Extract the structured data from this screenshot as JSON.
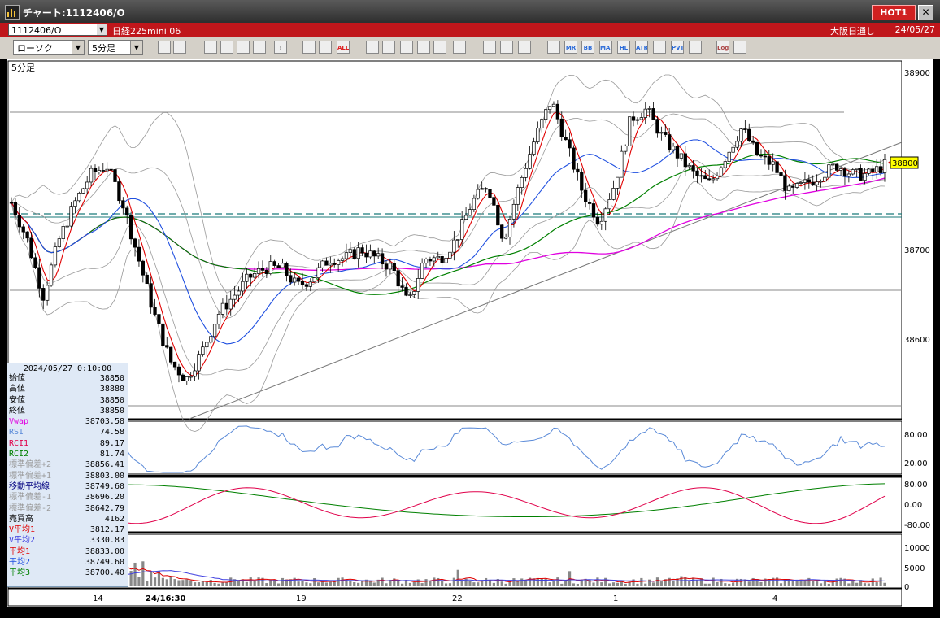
{
  "window": {
    "title": "チャート:1112406/O",
    "hot_label": "HOT1",
    "close_label": "✕"
  },
  "infobar": {
    "code": "1112406/O",
    "instrument": "日経225mini 06",
    "session": "大阪日通し",
    "date": "24/05/27"
  },
  "toolbar": {
    "chart_type": "ローソク",
    "interval": "5分足",
    "icons": [
      "zoom-icon",
      "table-icon",
      "bear-icon",
      "magnifier-icon",
      "chart-icon",
      "bull-icon",
      "warning-icon",
      "candle-icon",
      "candle-icon",
      "all-icon",
      "pen-icon",
      "line-icon",
      "cursor-icon",
      "arrow-icon",
      "text-icon",
      "trash-icon",
      "settings-icon",
      "wrench-icon",
      "palette-icon",
      "ma-icon",
      "mr-icon",
      "bb-icon",
      "mae-icon",
      "hl-icon",
      "atr-icon",
      "pattern-icon",
      "pvt-icon",
      "box-icon",
      "log-icon",
      "export-icon"
    ],
    "icon_labels": [
      "",
      "",
      "",
      "",
      "",
      "",
      "!",
      "",
      "",
      "ALL",
      "",
      "",
      "",
      "",
      "",
      "",
      "",
      "",
      "",
      "",
      "MR",
      "BB",
      "MAE",
      "HL",
      "ATR",
      "",
      "PVT",
      "",
      "Log",
      ""
    ]
  },
  "chart": {
    "interval_label": "5分足",
    "price_axis_labels": [
      "38900",
      "38800",
      "38700",
      "38600"
    ],
    "rsi_axis_labels": [
      "80.00",
      "20.00"
    ],
    "rci_axis_labels": [
      "80.00",
      "0.00",
      "-80.00"
    ],
    "volume_axis_labels": [
      "10000",
      "5000",
      "0"
    ],
    "x_labels": [
      "14",
      "24/16:30",
      "19",
      "22",
      "1",
      "4"
    ],
    "current_price_marker": "38800"
  },
  "info_panel": {
    "datetime": "2024/05/27 0:10:00",
    "rows": [
      {
        "label": "始値",
        "value": "38850",
        "color": "#000000"
      },
      {
        "label": "高値",
        "value": "38880",
        "color": "#000000"
      },
      {
        "label": "安値",
        "value": "38850",
        "color": "#000000"
      },
      {
        "label": "終値",
        "value": "38850",
        "color": "#000000"
      },
      {
        "label": "Vwap",
        "value": "38703.58",
        "color": "#e000e0"
      },
      {
        "label": "RSI",
        "value": "74.58",
        "color": "#5a8ad8"
      },
      {
        "label": "RCI1",
        "value": "89.17",
        "color": "#e0004a"
      },
      {
        "label": "RCI2",
        "value": "81.74",
        "color": "#008000"
      },
      {
        "label": "標準偏差+2",
        "value": "38856.41",
        "color": "#9a9a9a"
      },
      {
        "label": "標準偏差+1",
        "value": "38803.00",
        "color": "#9a9a9a"
      },
      {
        "label": "移動平均線",
        "value": "38749.60",
        "color": "#000080"
      },
      {
        "label": "標準偏差-1",
        "value": "38696.20",
        "color": "#9a9a9a"
      },
      {
        "label": "標準偏差-2",
        "value": "38642.79",
        "color": "#9a9a9a"
      },
      {
        "label": "売買高",
        "value": "4162",
        "color": "#000000"
      },
      {
        "label": "V平均1",
        "value": "3812.17",
        "color": "#e00000"
      },
      {
        "label": "V平均2",
        "value": "3330.83",
        "color": "#4040e0"
      },
      {
        "label": "平均1",
        "value": "38833.00",
        "color": "#e00000"
      },
      {
        "label": "平均2",
        "value": "38749.60",
        "color": "#2050e0"
      },
      {
        "label": "平均3",
        "value": "38700.40",
        "color": "#008000"
      }
    ]
  },
  "chart_data": {
    "type": "candlestick",
    "interval": "5分足",
    "y_range": [
      38530,
      38910
    ],
    "x_labels": [
      "14",
      "24/16:30",
      "19",
      "22",
      "1",
      "4"
    ],
    "close_path": [
      38760,
      38720,
      38660,
      38720,
      38760,
      38790,
      38800,
      38760,
      38700,
      38640,
      38590,
      38570,
      38600,
      38640,
      38660,
      38680,
      38690,
      38690,
      38670,
      38680,
      38700,
      38700,
      38710,
      38700,
      38690,
      38650,
      38700,
      38700,
      38720,
      38760,
      38780,
      38720,
      38780,
      38830,
      38870,
      38820,
      38770,
      38740,
      38780,
      38850,
      38860,
      38830,
      38810,
      38790,
      38780,
      38810,
      38840,
      38810,
      38800,
      38770,
      38780,
      38790,
      38800,
      38790,
      38790,
      38800
    ],
    "series": [
      {
        "name": "平均1",
        "color": "#e00000"
      },
      {
        "name": "平均2",
        "color": "#2050e0"
      },
      {
        "name": "平均3",
        "color": "#008000"
      },
      {
        "name": "Vwap",
        "color": "#e000e0"
      },
      {
        "name": "RSI",
        "color": "#5a8ad8"
      },
      {
        "name": "RCI1",
        "color": "#e0004a"
      },
      {
        "name": "RCI2",
        "color": "#008000"
      }
    ]
  }
}
